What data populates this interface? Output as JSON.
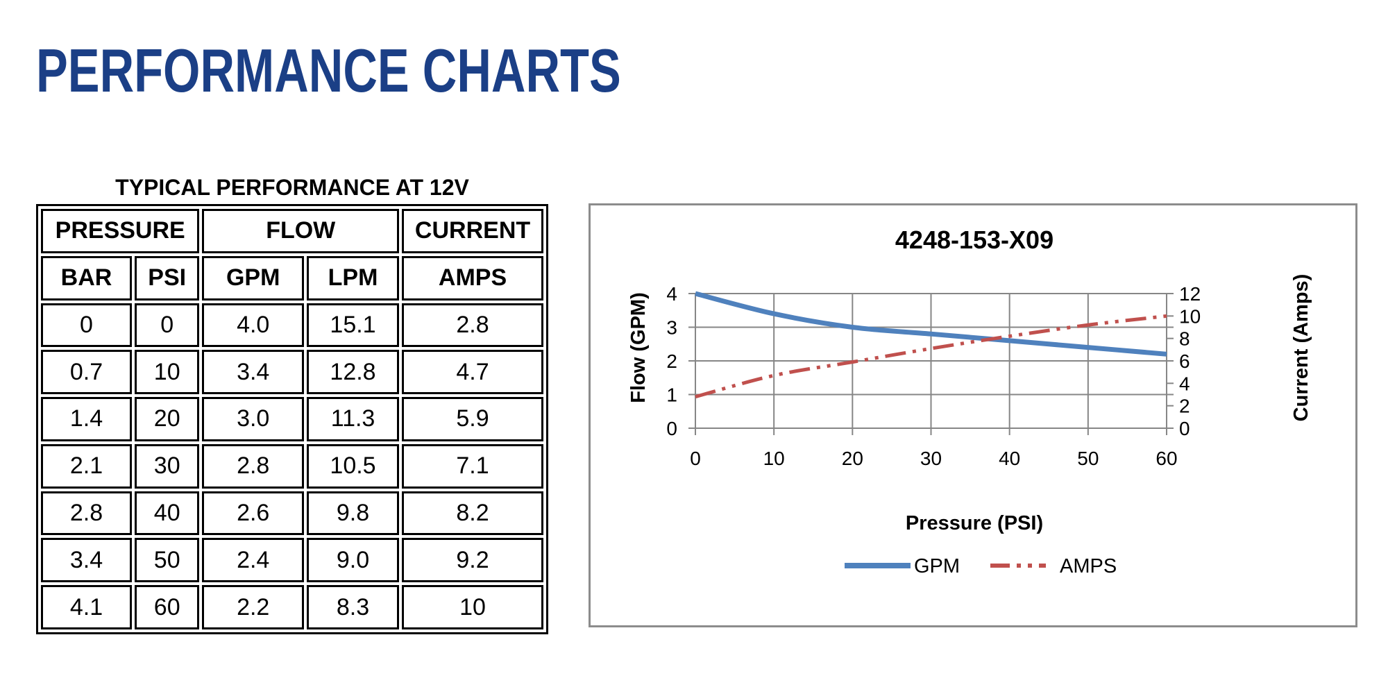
{
  "page": {
    "title": "PERFORMANCE CHARTS"
  },
  "table": {
    "caption": "TYPICAL PERFORMANCE AT 12V",
    "group_headers": [
      "PRESSURE",
      "FLOW",
      "CURRENT"
    ],
    "sub_headers": [
      "BAR",
      "PSI",
      "GPM",
      "LPM",
      "AMPS"
    ],
    "rows": [
      [
        "0",
        "0",
        "4.0",
        "15.1",
        "2.8"
      ],
      [
        "0.7",
        "10",
        "3.4",
        "12.8",
        "4.7"
      ],
      [
        "1.4",
        "20",
        "3.0",
        "11.3",
        "5.9"
      ],
      [
        "2.1",
        "30",
        "2.8",
        "10.5",
        "7.1"
      ],
      [
        "2.8",
        "40",
        "2.6",
        "9.8",
        "8.2"
      ],
      [
        "3.4",
        "50",
        "2.4",
        "9.0",
        "9.2"
      ],
      [
        "4.1",
        "60",
        "2.2",
        "8.3",
        "10"
      ]
    ]
  },
  "colors": {
    "title": "#1b3f86",
    "gpm": "#4f81bd",
    "amps": "#c0504d",
    "grid": "#868686",
    "frame": "#8c8c8c"
  },
  "chart_data": {
    "type": "line",
    "title": "4248-153-X09",
    "xlabel": "Pressure (PSI)",
    "ylabel": "Flow (GPM)",
    "y2label": "Current (Amps)",
    "x": [
      0,
      10,
      20,
      30,
      40,
      50,
      60
    ],
    "xlim": [
      0,
      60
    ],
    "xticks": [
      "0",
      "10",
      "20",
      "30",
      "40",
      "50",
      "60"
    ],
    "ylim": [
      0,
      4
    ],
    "yticks": [
      "0",
      "1",
      "2",
      "3",
      "4"
    ],
    "y2lim": [
      0,
      12
    ],
    "y2ticks": [
      "0",
      "2",
      "4",
      "6",
      "8",
      "10",
      "12"
    ],
    "grid": true,
    "legend_position": "bottom",
    "series": [
      {
        "name": "GPM",
        "axis": "left",
        "style": "solid",
        "values": [
          4.0,
          3.4,
          3.0,
          2.8,
          2.6,
          2.4,
          2.2
        ]
      },
      {
        "name": "AMPS",
        "axis": "right",
        "style": "dash-dot-dot",
        "values": [
          2.8,
          4.7,
          5.9,
          7.1,
          8.2,
          9.2,
          10
        ]
      }
    ]
  }
}
